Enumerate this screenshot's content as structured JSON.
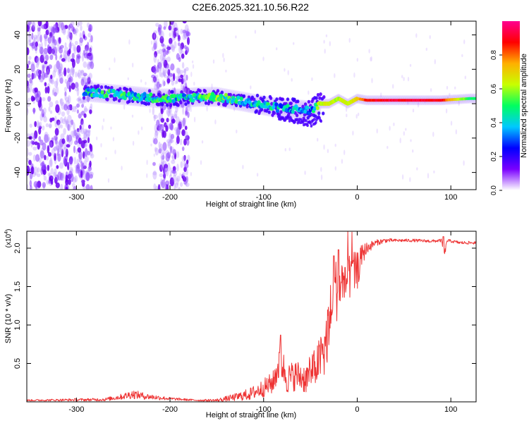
{
  "title": "C2E6.2025.321.10.56.R22",
  "chart_data": [
    {
      "type": "heatmap",
      "title": "C2E6.2025.321.10.56.R22",
      "xlabel": "Height of straight line (km)",
      "ylabel": "Frequency (Hz)",
      "xlim": [
        -353,
        127
      ],
      "ylim": [
        -50,
        48
      ],
      "xticks": [
        -300,
        -200,
        -100,
        0,
        100
      ],
      "yticks": [
        -40,
        -20,
        0,
        20,
        40
      ],
      "colorbar": {
        "label": "Normalized spectral amplitude",
        "range": [
          0,
          1
        ],
        "ticks": [
          "0.0",
          "0.2",
          "0.4",
          "0.6",
          "0.8"
        ],
        "colormap": [
          "#ffffff",
          "#7a00ff",
          "#0000ff",
          "#00c8ff",
          "#00ff60",
          "#c8ff00",
          "#ffb000",
          "#ff0000",
          "#ff0090"
        ]
      },
      "noise_bands_km": [
        [
          -353,
          -283
        ],
        [
          -218,
          -180
        ]
      ],
      "ridge": {
        "height_km": [
          -290,
          -270,
          -250,
          -230,
          -210,
          -190,
          -170,
          -150,
          -130,
          -110,
          -90,
          -70,
          -50,
          -40,
          -30,
          -20,
          -10,
          0,
          10,
          30,
          60,
          90,
          120
        ],
        "frequency_hz": [
          7,
          6,
          5,
          4,
          3,
          3,
          4,
          4,
          2,
          0,
          -2,
          -3,
          -4,
          0,
          0,
          3,
          0,
          3,
          2,
          2,
          2,
          2,
          3
        ],
        "amplitude": [
          0.4,
          0.45,
          0.45,
          0.4,
          0.45,
          0.4,
          0.45,
          0.5,
          0.45,
          0.4,
          0.4,
          0.35,
          0.3,
          0.6,
          0.65,
          0.6,
          0.65,
          0.7,
          0.85,
          0.92,
          0.92,
          0.9,
          0.5
        ]
      }
    },
    {
      "type": "line",
      "xlabel": "Height of straight line (km)",
      "ylabel": "SNR (10 * v/v)",
      "multiplier_label": "(x10",
      "multiplier_exp": "4",
      "multiplier_close": ")",
      "xlim": [
        -353,
        127
      ],
      "ylim": [
        0,
        2.22
      ],
      "xticks": [
        -300,
        -200,
        -100,
        0,
        100
      ],
      "yticks": [
        0.5,
        1.0,
        1.5,
        2.0
      ],
      "ytick_labels": [
        "0.5",
        "1.0",
        "1.5",
        "2.0"
      ],
      "color": "#ee3333",
      "envelope": {
        "x": [
          -353,
          -270,
          -250,
          -240,
          -225,
          -200,
          -170,
          -150,
          -130,
          -115,
          -100,
          -90,
          -82,
          -75,
          -65,
          -55,
          -45,
          -40,
          -35,
          -30,
          -25,
          -20,
          -15,
          -10,
          -5,
          0,
          5,
          10,
          20,
          30,
          40,
          60,
          80,
          90,
          93,
          96,
          110,
          127
        ],
        "y": [
          0.02,
          0.03,
          0.07,
          0.1,
          0.07,
          0.04,
          0.02,
          0.02,
          0.06,
          0.1,
          0.18,
          0.25,
          0.55,
          0.3,
          0.35,
          0.3,
          0.45,
          0.55,
          0.7,
          1.0,
          1.4,
          1.5,
          1.55,
          1.6,
          1.65,
          1.7,
          1.9,
          2.0,
          2.07,
          2.1,
          2.1,
          2.1,
          2.09,
          2.1,
          1.9,
          2.1,
          2.07,
          2.07
        ],
        "noise": [
          0.01,
          0.02,
          0.04,
          0.06,
          0.04,
          0.02,
          0.01,
          0.02,
          0.05,
          0.08,
          0.12,
          0.15,
          0.25,
          0.2,
          0.2,
          0.2,
          0.25,
          0.3,
          0.35,
          0.45,
          0.45,
          0.4,
          0.35,
          0.3,
          0.3,
          0.25,
          0.15,
          0.08,
          0.04,
          0.03,
          0.02,
          0.02,
          0.02,
          0.02,
          0.05,
          0.02,
          0.02,
          0.02
        ]
      },
      "peaks": [
        {
          "x": -82,
          "y": 0.87
        },
        {
          "x": -25,
          "y": 1.9
        },
        {
          "x": -20,
          "y": 1.98
        },
        {
          "x": -13,
          "y": 1.75
        },
        {
          "x": -5,
          "y": 1.8
        },
        {
          "x": 92,
          "y": 2.15
        }
      ]
    }
  ]
}
